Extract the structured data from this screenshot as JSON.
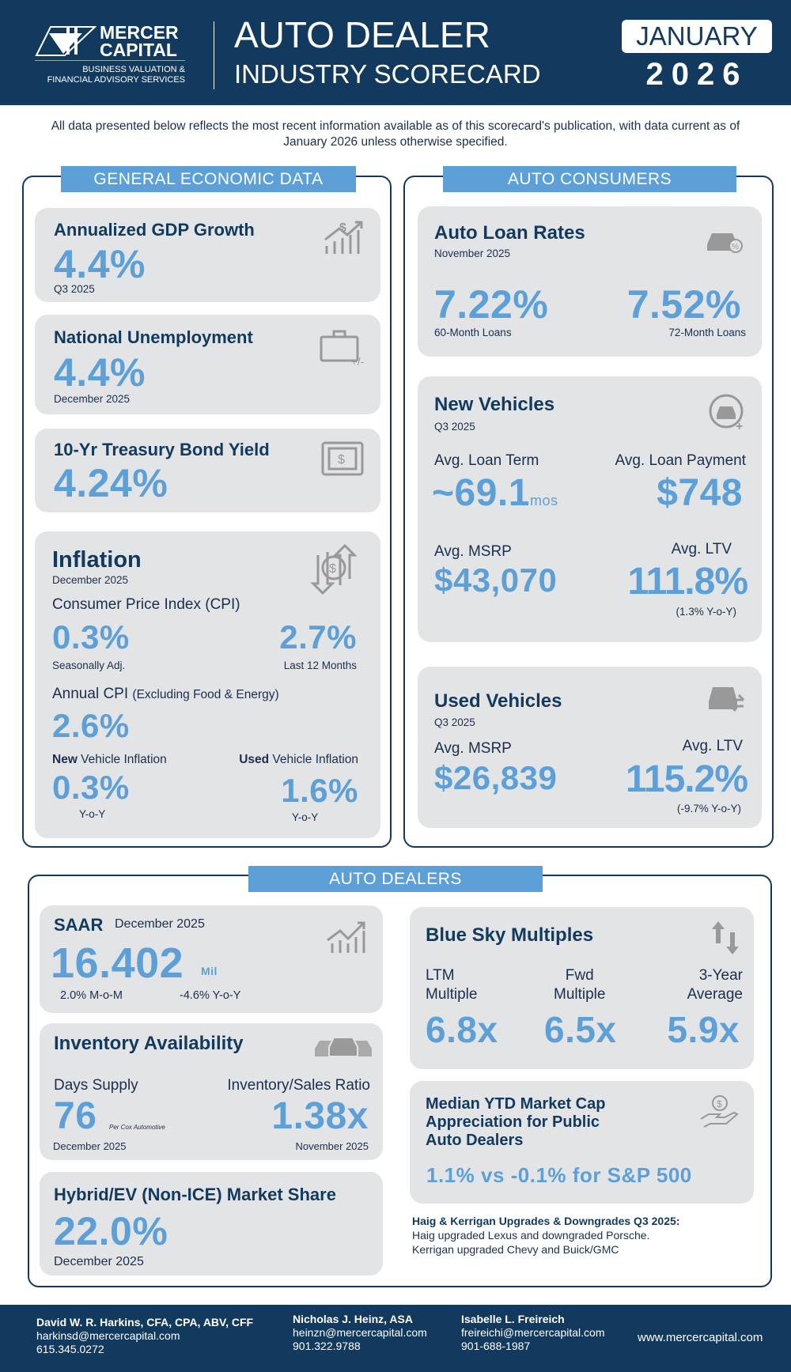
{
  "header": {
    "logo_line1": "MERCER",
    "logo_line2": "CAPITAL",
    "logo_tag1": "BUSINESS VALUATION &",
    "logo_tag2": "FINANCIAL ADVISORY SERVICES",
    "title1": "AUTO DEALER",
    "title2": "INDUSTRY SCORECARD",
    "month": "JANUARY",
    "year": "2026"
  },
  "intro": "All data presented below reflects the most recent information available as of this scorecard's publication, with data current as of January 2026 unless otherwise specified.",
  "colors": {
    "navy": "#123a5e",
    "accent": "#5da0d8",
    "card": "#e3e4e6"
  },
  "general": {
    "title": "GENERAL ECONOMIC DATA",
    "gdp": {
      "title": "Annualized GDP Growth",
      "value": "4.4%",
      "period": "Q3 2025",
      "icon": "chart-dollar-icon"
    },
    "unemployment": {
      "title": "National Unemployment",
      "value": "4.4%",
      "period": "December 2025",
      "icon": "briefcase-icon",
      "icon_text": "+/-"
    },
    "treasury": {
      "title": "10-Yr Treasury Bond Yield",
      "value": "4.24%",
      "icon": "bill-icon"
    },
    "inflation": {
      "title": "Inflation",
      "period": "December 2025",
      "icon": "dollar-arrows-icon",
      "cpi_label": "Consumer Price Index (CPI)",
      "cpi_sa": "0.3%",
      "cpi_sa_label": "Seasonally Adj.",
      "cpi_12": "2.7%",
      "cpi_12_label": "Last 12 Months",
      "core_label": "Annual CPI",
      "core_note": "(Excluding Food & Energy)",
      "core_value": "2.6%",
      "new_bold": "New",
      "new_label": " Vehicle Inflation",
      "new_value": "0.3%",
      "new_sub": "Y-o-Y",
      "used_bold": "Used",
      "used_label": " Vehicle Inflation",
      "used_value": "1.6%",
      "used_sub": "Y-o-Y"
    }
  },
  "consumers": {
    "title": "AUTO CONSUMERS",
    "loans": {
      "title": "Auto Loan Rates",
      "period": "November 2025",
      "icon": "car-percent-icon",
      "v60": "7.22%",
      "l60": "60-Month Loans",
      "v72": "7.52%",
      "l72": "72-Month Loans"
    },
    "new": {
      "title": "New Vehicles",
      "period": "Q3 2025",
      "icon": "car-plus-icon",
      "term_label": "Avg. Loan Term",
      "term_value": "~69.1",
      "term_unit": "mos",
      "pay_label": "Avg. Loan Payment",
      "pay_value": "$748",
      "msrp_label": "Avg. MSRP",
      "msrp_value": "$43,070",
      "ltv_label": "Avg. LTV",
      "ltv_value": "111.8%",
      "ltv_sub": "(1.3% Y-o-Y)"
    },
    "used": {
      "title": "Used Vehicles",
      "period": "Q3 2025",
      "icon": "car-swap-icon",
      "msrp_label": "Avg. MSRP",
      "msrp_value": "$26,839",
      "ltv_label": "Avg. LTV",
      "ltv_value": "115.2%",
      "ltv_sub": "(-9.7% Y-o-Y)"
    }
  },
  "dealers": {
    "title": "AUTO DEALERS",
    "saar": {
      "title": "SAAR",
      "period": "December 2025",
      "value": "16.402",
      "unit": "Mil",
      "mom": "2.0% M-o-M",
      "yoy": "-4.6% Y-o-Y",
      "icon": "chart-up-icon"
    },
    "inventory": {
      "title": "Inventory Availability",
      "icon": "cars-icon",
      "days_label": "Days Supply",
      "days_value": "76",
      "days_source": "Per Cox Automotive",
      "days_period": "December 2025",
      "ratio_label": "Inventory/Sales Ratio",
      "ratio_value": "1.38x",
      "ratio_period": "November 2025"
    },
    "hybrid": {
      "title": "Hybrid/EV (Non-ICE) Market Share",
      "value": "22.0%",
      "period": "December 2025"
    },
    "bluesky": {
      "title": "Blue Sky Multiples",
      "icon": "up-down-arrows-icon",
      "cols": [
        {
          "l1": "LTM",
          "l2": "Multiple",
          "value": "6.8x"
        },
        {
          "l1": "Fwd",
          "l2": "Multiple",
          "value": "6.5x"
        },
        {
          "l1": "3-Year",
          "l2": "Average",
          "value": "5.9x"
        }
      ]
    },
    "marketcap": {
      "title1": "Median YTD Market Cap",
      "title2": "Appreciation for Public",
      "title3": "Auto Dealers",
      "value": "1.1% vs -0.1% for S&P 500",
      "icon": "hand-dollar-icon"
    },
    "haig": {
      "title": "Haig & Kerrigan Upgrades & Downgrades Q3 2025:",
      "line1": "Haig upgraded Lexus and downgraded Porsche.",
      "line2": "Kerrigan upgraded Chevy and Buick/GMC"
    }
  },
  "footer": {
    "contacts": [
      {
        "name": "David W. R. Harkins, CFA, CPA, ABV, CFF",
        "email": "harkinsd@mercercapital.com",
        "phone": "615.345.0272"
      },
      {
        "name": "Nicholas J. Heinz, ASA",
        "email": "heinzn@mercercapital.com",
        "phone": "901.322.9788"
      },
      {
        "name": "Isabelle L. Freireich",
        "email": "freireichi@mercercapital.com",
        "phone": "901-688-1987"
      }
    ],
    "website": "www.mercercapital.com"
  }
}
